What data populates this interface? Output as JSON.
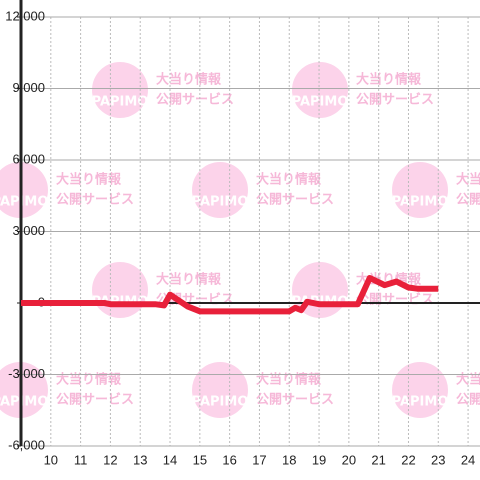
{
  "chart_data": {
    "type": "line",
    "x": [
      9,
      11.8,
      12,
      13.5,
      13.8,
      14,
      14.3,
      14.6,
      15,
      18,
      18.2,
      18.4,
      18.6,
      19,
      20.3,
      20.7,
      21.2,
      21.6,
      22,
      22.3,
      23
    ],
    "series": [
      {
        "color": "#e8203a",
        "values": [
          0,
          0,
          -50,
          -50,
          -100,
          350,
          100,
          -150,
          -350,
          -350,
          -200,
          -300,
          50,
          -50,
          -50,
          1050,
          750,
          900,
          650,
          600,
          600
        ]
      }
    ],
    "xlim": [
      9,
      24.4
    ],
    "xticks": [
      10,
      11,
      12,
      13,
      14,
      15,
      16,
      17,
      18,
      19,
      20,
      21,
      22,
      23,
      24
    ],
    "ylim": [
      -6000,
      12000
    ],
    "yticks": [
      {
        "value": -6000,
        "label": "-6,000"
      },
      {
        "value": -3000,
        "label": "-3,000"
      },
      0,
      {
        "value": 3000,
        "label": "3,000"
      },
      {
        "value": 6000,
        "label": "6,000"
      },
      {
        "value": 9000,
        "label": "9,000"
      },
      {
        "value": 12000,
        "label": "12,000"
      }
    ],
    "grid": true
  },
  "watermark": {
    "logo": "PAPIMO",
    "line1": "大当り情報",
    "line2": "公開サービス"
  }
}
